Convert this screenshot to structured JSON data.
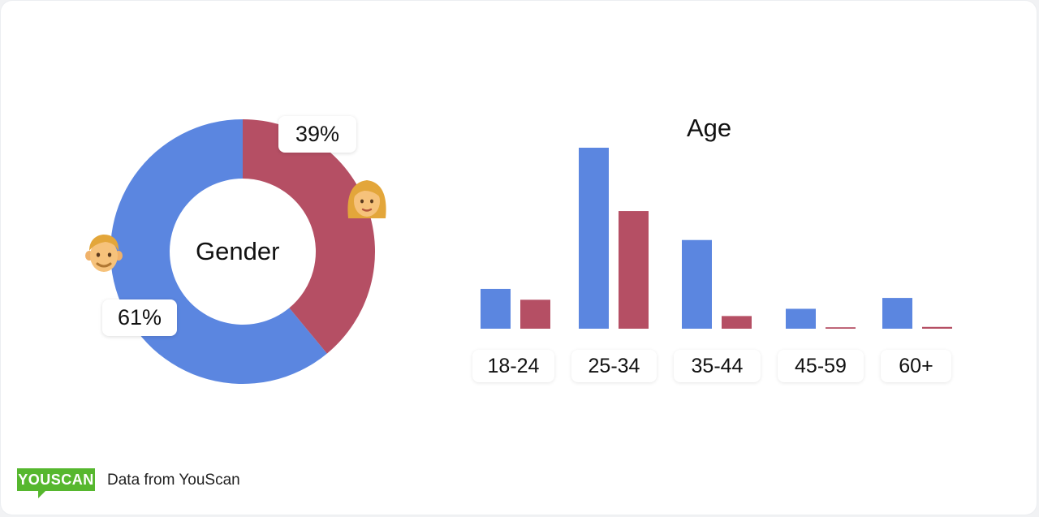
{
  "colors": {
    "male": "#5b86e0",
    "female": "#b54f64"
  },
  "gender": {
    "title": "Gender",
    "male_label": "61%",
    "female_label": "39%",
    "male_icon": "man-emoji-icon",
    "female_icon": "woman-emoji-icon"
  },
  "age": {
    "title": "Age"
  },
  "footer": {
    "logo": "YOUSCAN",
    "source": "Data from YouScan"
  },
  "chart_data": [
    {
      "type": "pie",
      "title": "Gender",
      "labels": [
        "61%",
        "39%"
      ],
      "values": [
        61,
        39
      ],
      "donut": true
    },
    {
      "type": "bar",
      "title": "Age",
      "categories": [
        "18-24",
        "25-34",
        "35-44",
        "45-59",
        "60+"
      ],
      "series": [
        {
          "values": [
            11,
            50,
            24.5,
            5.5,
            8.5
          ]
        },
        {
          "values": [
            8,
            32.5,
            3.5,
            0.4,
            0.5
          ]
        }
      ],
      "ylim": [
        0,
        50
      ],
      "grid": false
    }
  ]
}
